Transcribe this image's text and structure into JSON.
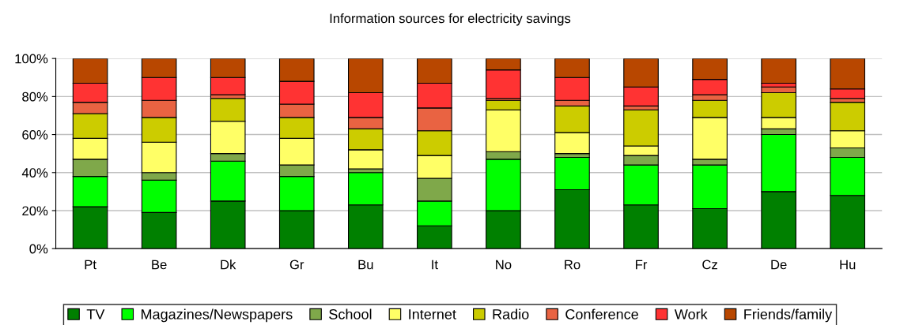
{
  "chart_data": {
    "type": "bar",
    "title": "Information sources for electricity savings",
    "stacked": true,
    "categories": [
      "Pt",
      "Be",
      "Dk",
      "Gr",
      "Bu",
      "It",
      "No",
      "Ro",
      "Fr",
      "Cz",
      "De",
      "Hu"
    ],
    "series": [
      {
        "name": "TV",
        "color": "#008000",
        "values": [
          22,
          19,
          25,
          20,
          23,
          12,
          20,
          31,
          23,
          21,
          30,
          28
        ]
      },
      {
        "name": "Magazines/Newspapers",
        "color": "#00ff00",
        "values": [
          16,
          17,
          21,
          18,
          17,
          13,
          27,
          17,
          21,
          23,
          30,
          20
        ]
      },
      {
        "name": "School",
        "color": "#7fa84a",
        "values": [
          9,
          4,
          4,
          6,
          2,
          12,
          4,
          2,
          5,
          3,
          3,
          5
        ]
      },
      {
        "name": "Internet",
        "color": "#ffff66",
        "values": [
          11,
          16,
          17,
          14,
          10,
          12,
          22,
          11,
          5,
          22,
          6,
          9
        ]
      },
      {
        "name": "Radio",
        "color": "#cccc00",
        "values": [
          13,
          13,
          12,
          11,
          11,
          13,
          5,
          14,
          19,
          9,
          13,
          15
        ]
      },
      {
        "name": "Conference",
        "color": "#e96342",
        "values": [
          6,
          9,
          2,
          7,
          6,
          12,
          1,
          3,
          2,
          3,
          3,
          2
        ]
      },
      {
        "name": "Work",
        "color": "#ff3333",
        "values": [
          10,
          12,
          9,
          12,
          13,
          13,
          15,
          12,
          10,
          8,
          2,
          5
        ]
      },
      {
        "name": "Friends/family",
        "color": "#b84700",
        "values": [
          13,
          10,
          10,
          12,
          18,
          13,
          6,
          10,
          15,
          11,
          13,
          16
        ]
      }
    ],
    "ylim": [
      0,
      100
    ],
    "yticks": [
      {
        "value": 0,
        "label": "0%"
      },
      {
        "value": 20,
        "label": "20%"
      },
      {
        "value": 40,
        "label": "40%"
      },
      {
        "value": 60,
        "label": "60%"
      },
      {
        "value": 80,
        "label": "80%"
      },
      {
        "value": 100,
        "label": "100%"
      }
    ],
    "grid": "y",
    "legend": "bottom"
  }
}
